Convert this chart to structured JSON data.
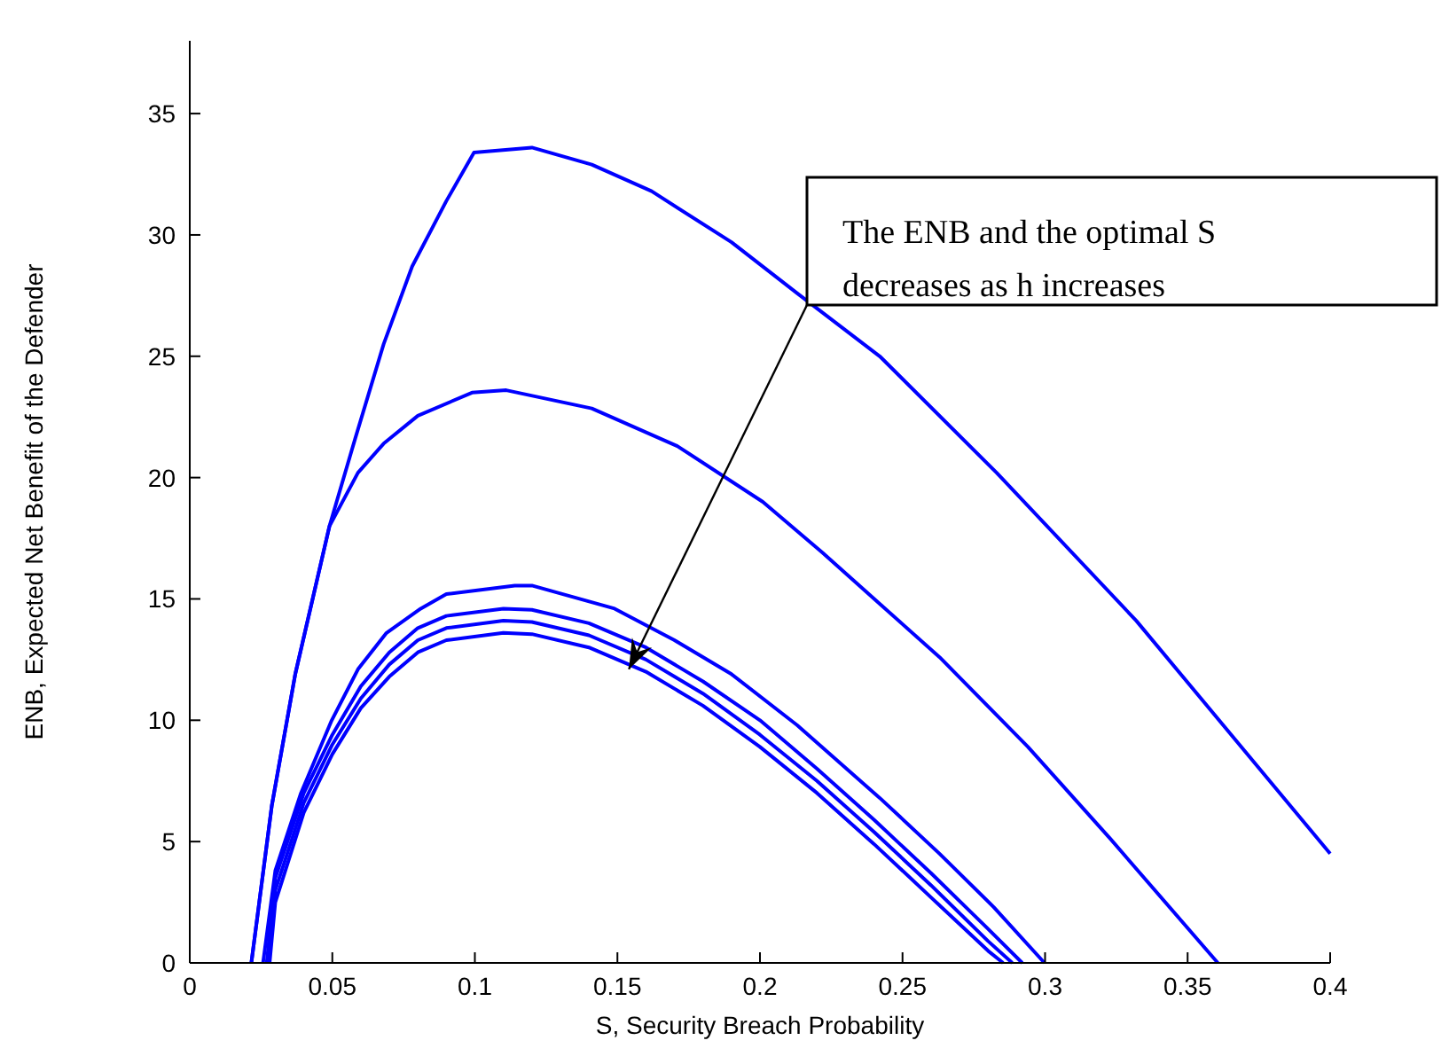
{
  "chart_data": {
    "type": "line",
    "xlabel": "S, Security Breach Probability",
    "ylabel": "ENB, Expected Net Benefit of the Defender",
    "xlim": [
      0,
      0.4
    ],
    "ylim": [
      0,
      38
    ],
    "xticks": [
      0,
      0.05,
      0.1,
      0.15,
      0.2,
      0.25,
      0.3,
      0.35,
      0.4
    ],
    "yticks": [
      0,
      5,
      10,
      15,
      20,
      25,
      30,
      35
    ],
    "grid": false,
    "marker": "none",
    "line_style": "solid",
    "annotations": [
      {
        "text": "The ENB and the optimal S decreases as h increases",
        "x": 0.154,
        "y": 12.1
      }
    ],
    "series": [
      {
        "color": "#0000ff",
        "x": [
          0.0216,
          0.0288,
          0.037,
          0.049,
          0.058,
          0.068,
          0.078,
          0.09,
          0.0997,
          0.12,
          0.141,
          0.162,
          0.19,
          0.213,
          0.242,
          0.283,
          0.332,
          0.4
        ],
        "values": [
          0,
          6.5,
          11.9,
          18.0,
          21.6,
          25.5,
          28.7,
          31.4,
          33.4,
          33.6,
          32.9,
          31.8,
          29.7,
          27.6,
          25.0,
          20.2,
          14.1,
          4.5
        ]
      },
      {
        "color": "#0000ff",
        "x": [
          0.0216,
          0.0288,
          0.037,
          0.049,
          0.059,
          0.068,
          0.08,
          0.099,
          0.111,
          0.141,
          0.171,
          0.201,
          0.222,
          0.242,
          0.263,
          0.294,
          0.323,
          0.3606
        ],
        "values": [
          0,
          6.5,
          11.9,
          18.0,
          20.2,
          21.4,
          22.55,
          23.5,
          23.6,
          22.85,
          21.3,
          19.0,
          16.9,
          14.8,
          12.6,
          8.9,
          5.1,
          0
        ]
      },
      {
        "color": "#0000ff",
        "x": [
          0.0257,
          0.03,
          0.039,
          0.0496,
          0.059,
          0.069,
          0.081,
          0.09,
          0.114,
          0.12,
          0.149,
          0.17,
          0.19,
          0.213,
          0.242,
          0.263,
          0.282,
          0.2998
        ],
        "values": [
          0,
          3.8,
          7.0,
          9.95,
          12.1,
          13.6,
          14.6,
          15.2,
          15.55,
          15.55,
          14.6,
          13.3,
          11.9,
          9.8,
          6.8,
          4.5,
          2.3,
          0
        ]
      },
      {
        "color": "#0000ff",
        "x": [
          0.027,
          0.03,
          0.04,
          0.05,
          0.06,
          0.07,
          0.08,
          0.09,
          0.11,
          0.12,
          0.14,
          0.16,
          0.18,
          0.2,
          0.22,
          0.24,
          0.26,
          0.28,
          0.292
        ],
        "values": [
          0,
          3.5,
          7.0,
          9.4,
          11.4,
          12.8,
          13.8,
          14.3,
          14.6,
          14.55,
          14.0,
          13.0,
          11.6,
          10.0,
          8.0,
          5.9,
          3.7,
          1.4,
          0
        ]
      },
      {
        "color": "#0000ff",
        "x": [
          0.0275,
          0.03,
          0.04,
          0.05,
          0.06,
          0.07,
          0.08,
          0.09,
          0.11,
          0.12,
          0.14,
          0.16,
          0.18,
          0.2,
          0.22,
          0.24,
          0.26,
          0.28,
          0.2885
        ],
        "values": [
          0,
          3.0,
          6.6,
          9.0,
          10.9,
          12.3,
          13.3,
          13.8,
          14.1,
          14.05,
          13.5,
          12.5,
          11.1,
          9.4,
          7.5,
          5.4,
          3.2,
          0.9,
          0
        ]
      },
      {
        "color": "#0000ff",
        "x": [
          0.028,
          0.03,
          0.04,
          0.05,
          0.06,
          0.07,
          0.08,
          0.09,
          0.11,
          0.12,
          0.14,
          0.16,
          0.18,
          0.2,
          0.22,
          0.24,
          0.26,
          0.28,
          0.2853
        ],
        "values": [
          0,
          2.5,
          6.2,
          8.6,
          10.5,
          11.8,
          12.8,
          13.3,
          13.6,
          13.55,
          13.0,
          12.0,
          10.6,
          8.9,
          7.0,
          4.9,
          2.7,
          0.5,
          0
        ]
      }
    ]
  }
}
